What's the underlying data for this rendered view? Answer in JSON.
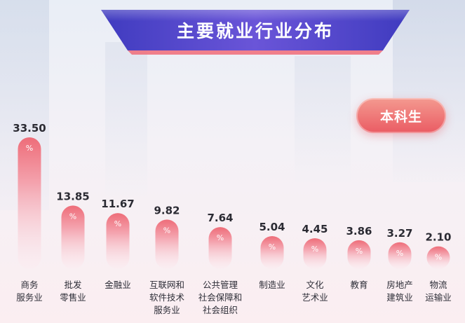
{
  "header": {
    "title": "主要就业行业分布"
  },
  "badge": {
    "label": "本科生"
  },
  "colors": {
    "banner": "#5b4fd0",
    "bar_top": "#ee6d79",
    "bar_bottom": "#fce4ea",
    "badge": "#ea5b63"
  },
  "chart_data": {
    "type": "bar",
    "title": "主要就业行业分布",
    "unit": "%",
    "categories": [
      [
        "商务",
        "服务业"
      ],
      [
        "批发",
        "零售业"
      ],
      [
        "金融业"
      ],
      [
        "互联网和",
        "软件技术",
        "服务业"
      ],
      [
        "公共管理",
        "社会保障和",
        "社会组织"
      ],
      [
        "制造业"
      ],
      [
        "文化",
        "艺术业"
      ],
      [
        "教育"
      ],
      [
        "房地产",
        "建筑业"
      ],
      [
        "物流",
        "运输业"
      ]
    ],
    "values": [
      33.5,
      13.85,
      11.67,
      9.82,
      7.64,
      5.04,
      4.45,
      3.86,
      3.27,
      2.1
    ],
    "value_labels": [
      "33.50",
      "13.85",
      "11.67",
      "9.82",
      "7.64",
      "5.04",
      "4.45",
      "3.86",
      "3.27",
      "2.10"
    ],
    "grid": false,
    "legend": "none"
  }
}
